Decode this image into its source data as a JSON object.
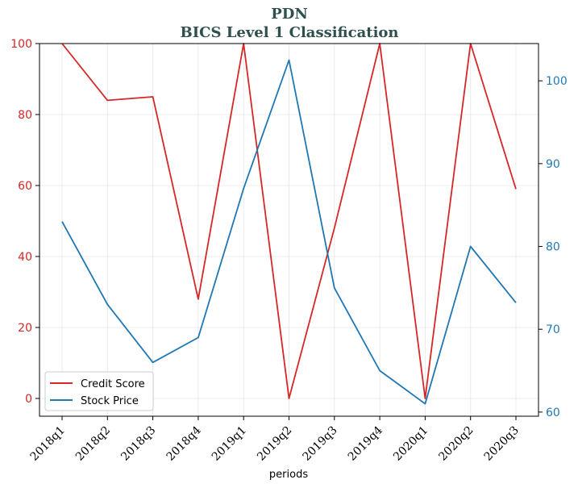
{
  "chart_data": {
    "type": "line",
    "title": "PDN",
    "subtitle": "BICS Level 1 Classification",
    "xlabel": "periods",
    "categories": [
      "2018q1",
      "2018q2",
      "2018q3",
      "2018q4",
      "2019q1",
      "2019q2",
      "2019q3",
      "2019q4",
      "2020q1",
      "2020q2",
      "2020q3"
    ],
    "series": [
      {
        "name": "Credit Score",
        "axis": "left",
        "color": "#d62728",
        "values": [
          100,
          84,
          85,
          28,
          100,
          0,
          48,
          100,
          0,
          100,
          59
        ]
      },
      {
        "name": "Stock Price",
        "axis": "right",
        "color": "#1f77b4",
        "values": [
          83,
          73,
          66,
          69,
          87,
          102.5,
          75,
          65,
          61,
          80,
          73.2
        ]
      }
    ],
    "y_left": {
      "lim": [
        -5,
        100
      ],
      "ticks": [
        0,
        20,
        40,
        60,
        80,
        100
      ],
      "color": "#d62728"
    },
    "y_right": {
      "lim": [
        59.5,
        104.5
      ],
      "ticks": [
        60,
        70,
        80,
        90,
        100
      ],
      "color": "#1f77b4"
    },
    "grid": true,
    "legend": "lower-left"
  }
}
